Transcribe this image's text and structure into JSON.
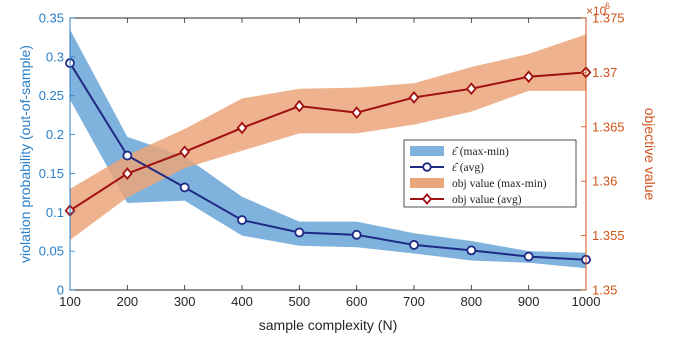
{
  "chart_data": {
    "type": "line",
    "xlabel": "sample complexity (N)",
    "ylabel_left": "violation probability (out-of-sample)",
    "ylabel_right": "objective value",
    "right_exponent_base": "×10",
    "right_exponent_power": "6",
    "x_ticks": [
      "100",
      "200",
      "300",
      "400",
      "500",
      "600",
      "700",
      "800",
      "900",
      "1000"
    ],
    "left_ticks": [
      "0",
      "0.05",
      "0.1",
      "0.15",
      "0.2",
      "0.25",
      "0.3",
      "0.35"
    ],
    "right_ticks": [
      "1.35",
      "1.355",
      "1.36",
      "1.365",
      "1.37",
      "1.375"
    ],
    "xlim": [
      100,
      1000
    ],
    "ylim_left": [
      0,
      0.35
    ],
    "ylim_right": [
      1.35,
      1.375
    ],
    "x": [
      100,
      200,
      300,
      400,
      500,
      600,
      700,
      800,
      900,
      1000
    ],
    "series": [
      {
        "name": "ε̂ (max-min)",
        "axis": "left",
        "kind": "band",
        "color": "#7fb2dc",
        "upper": [
          0.335,
          0.197,
          0.172,
          0.12,
          0.088,
          0.088,
          0.073,
          0.063,
          0.05,
          0.048
        ],
        "lower": [
          0.245,
          0.112,
          0.115,
          0.07,
          0.057,
          0.055,
          0.047,
          0.038,
          0.035,
          0.028
        ]
      },
      {
        "name": "ε̂ (avg)",
        "axis": "left",
        "kind": "line",
        "color": "#1f2a85",
        "marker": "circle",
        "values": [
          0.292,
          0.173,
          0.132,
          0.09,
          0.074,
          0.071,
          0.058,
          0.051,
          0.043,
          0.039
        ]
      },
      {
        "name": "obj value (max-min)",
        "axis": "right",
        "kind": "band",
        "color": "#eba57a",
        "upper": [
          1.3593,
          1.3624,
          1.3648,
          1.3676,
          1.3685,
          1.3686,
          1.369,
          1.3705,
          1.3717,
          1.3735
        ],
        "lower": [
          1.3546,
          1.3585,
          1.3612,
          1.3628,
          1.3644,
          1.3644,
          1.3652,
          1.3664,
          1.3683,
          1.3683
        ]
      },
      {
        "name": "obj value (avg)",
        "axis": "right",
        "kind": "line",
        "color": "#a01010",
        "marker": "diamond",
        "values": [
          1.3573,
          1.3607,
          1.3627,
          1.3649,
          1.3669,
          1.3663,
          1.3677,
          1.3685,
          1.3696,
          1.37
        ]
      }
    ],
    "legend": {
      "position": "center-right",
      "entries": [
        "ε̂ (max-min)",
        "ε̂ (avg)",
        "obj value (max-min)",
        "obj value (avg)"
      ]
    },
    "grid": false
  }
}
